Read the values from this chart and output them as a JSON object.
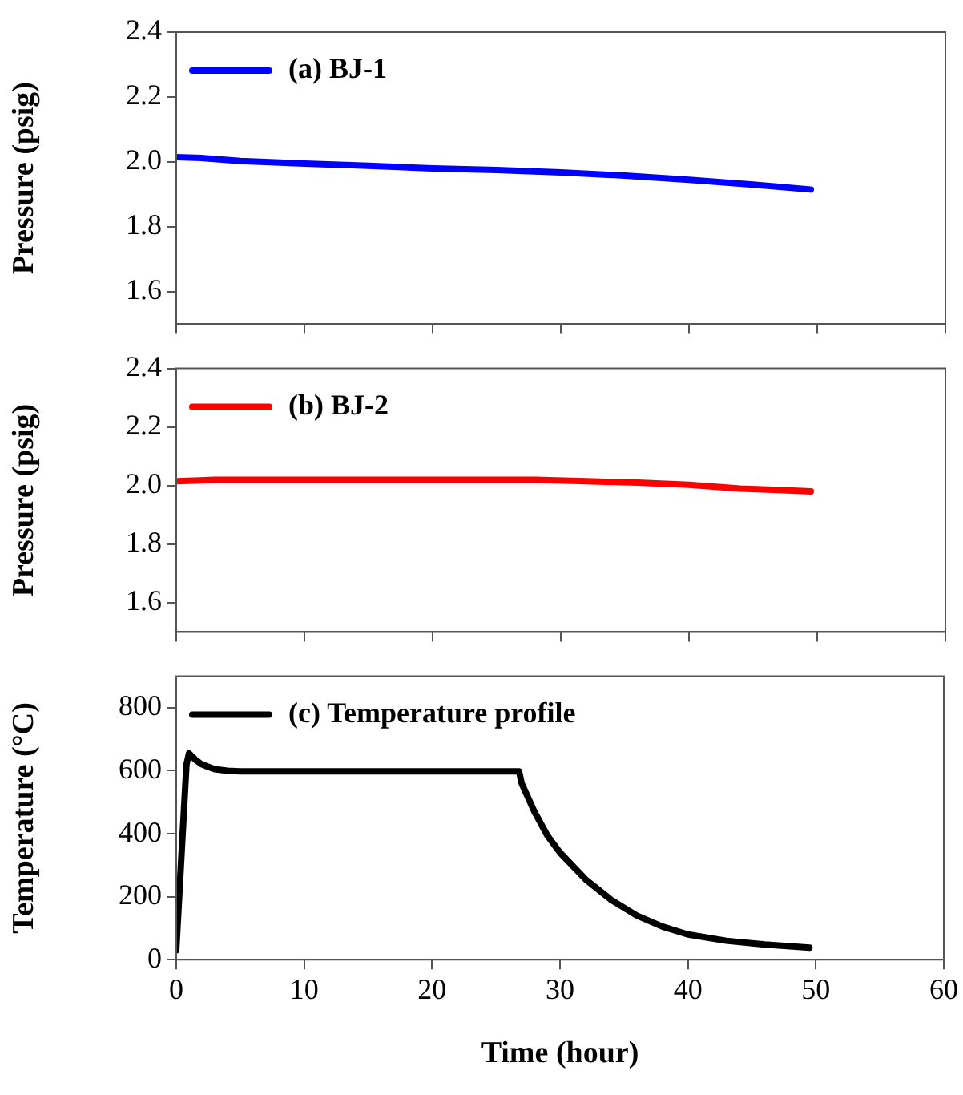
{
  "chart_data": [
    {
      "type": "line",
      "ylabel": "Pressure (psig)",
      "xlim": [
        0,
        60
      ],
      "xticks": [
        0,
        10,
        20,
        30,
        40,
        50,
        60
      ],
      "ylim": [
        1.5,
        2.4
      ],
      "yticks": [
        1.6,
        1.8,
        {
          "value": 2,
          "label": "2.0"
        },
        2.2,
        2.4
      ],
      "tick_labels": "y",
      "grid": false,
      "legend": "top left",
      "marker": "none",
      "line_style": "solid",
      "series": [
        {
          "name": "(a) BJ-1",
          "color": "#0000ff",
          "x": [
            0,
            2,
            5,
            10,
            15,
            20,
            25,
            30,
            35,
            40,
            45,
            49.5
          ],
          "values": [
            2.015,
            2.012,
            2.003,
            1.995,
            1.988,
            1.98,
            1.975,
            1.968,
            1.958,
            1.945,
            1.93,
            1.915
          ]
        }
      ]
    },
    {
      "type": "line",
      "ylabel": "Pressure (psig)",
      "xlim": [
        0,
        60
      ],
      "xticks": [
        0,
        10,
        20,
        30,
        40,
        50,
        60
      ],
      "ylim": [
        1.5,
        2.4
      ],
      "yticks": [
        1.6,
        1.8,
        {
          "value": 2,
          "label": "2.0"
        },
        2.2,
        2.4
      ],
      "tick_labels": "y",
      "grid": false,
      "legend": "top left",
      "marker": "none",
      "line_style": "solid",
      "series": [
        {
          "name": "(b) BJ-2",
          "color": "#ff0000",
          "x": [
            0,
            3,
            10,
            20,
            28,
            32,
            36,
            40,
            44,
            47,
            49.5
          ],
          "values": [
            2.015,
            2.02,
            2.02,
            2.02,
            2.02,
            2.015,
            2.01,
            2.003,
            1.99,
            1.985,
            1.98
          ]
        }
      ]
    },
    {
      "type": "line",
      "ylabel": "Temperature (°C)",
      "xlabel": "Time (hour)",
      "xlim": [
        0,
        60
      ],
      "xticks": [
        0,
        10,
        20,
        30,
        40,
        50,
        60
      ],
      "ylim": [
        0,
        900
      ],
      "yticks": [
        0,
        200,
        400,
        600,
        800
      ],
      "grid": false,
      "legend": "top left",
      "marker": "none",
      "line_style": "solid",
      "series": [
        {
          "name": "(c) Temperature profile",
          "color": "#000000",
          "x": [
            0,
            0.8,
            1,
            1.5,
            2,
            3,
            4,
            5,
            10,
            20,
            26.8,
            27,
            28,
            29,
            30,
            32,
            34,
            36,
            38,
            40,
            43,
            46,
            49.5
          ],
          "values": [
            30,
            620,
            655,
            635,
            620,
            605,
            600,
            598,
            598,
            598,
            598,
            560,
            470,
            395,
            340,
            255,
            190,
            140,
            105,
            80,
            60,
            48,
            38
          ]
        }
      ]
    }
  ]
}
